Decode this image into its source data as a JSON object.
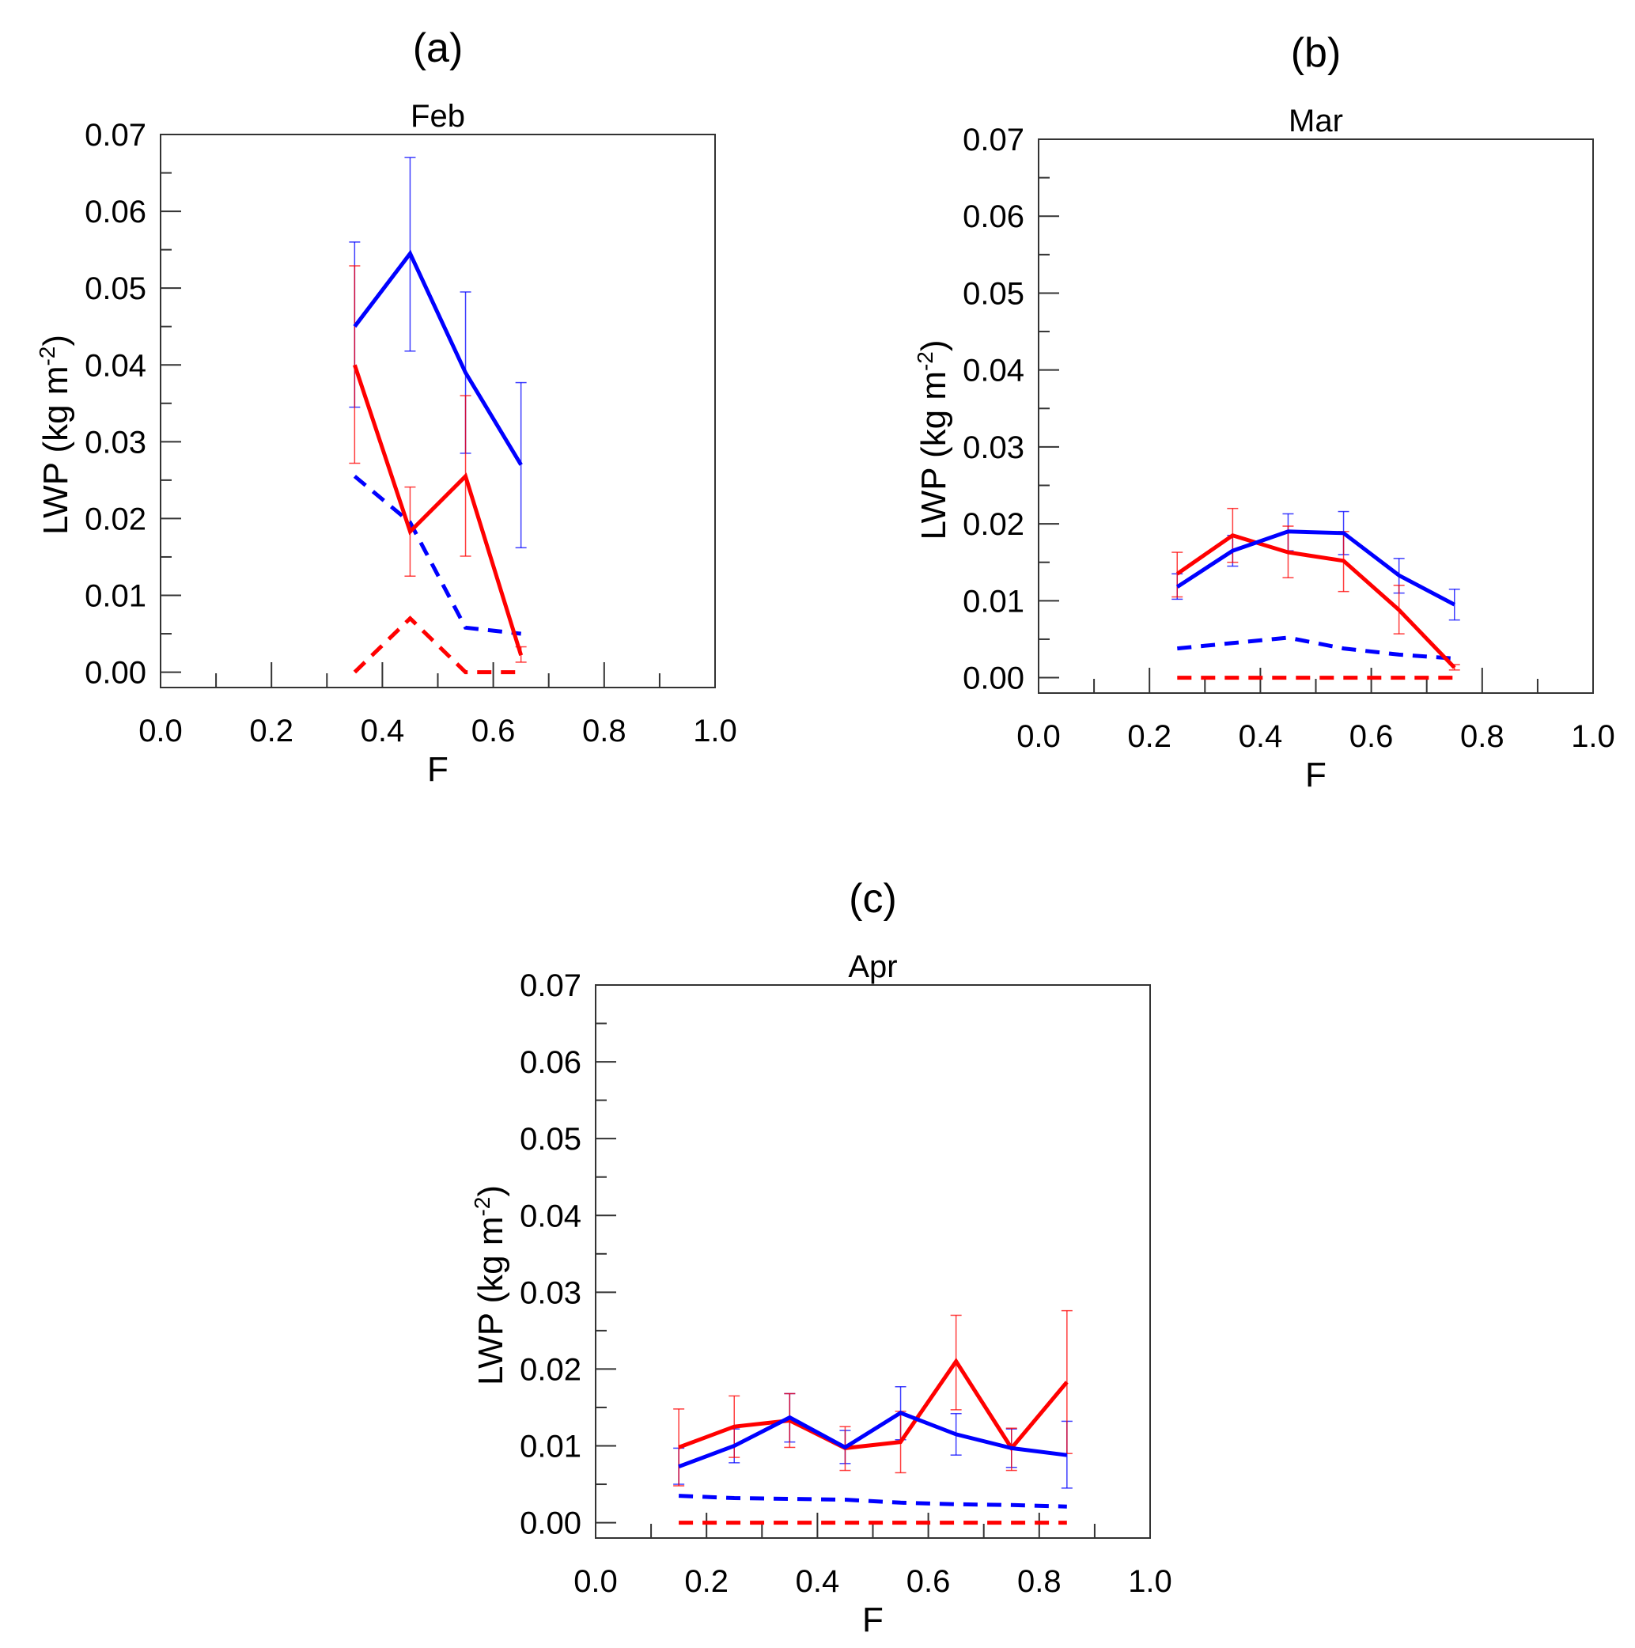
{
  "chart_data": [
    {
      "type": "line",
      "panel_label": "(a)",
      "title": "Feb",
      "xlabel": "F",
      "ylabel": {
        "main": "LWP (kg m",
        "sup": "-2",
        "end": ")"
      },
      "xlim": [
        0,
        1
      ],
      "ylim": [
        -0.002,
        0.07
      ],
      "xticks": [
        "0.0",
        "0.2",
        "0.4",
        "0.6",
        "0.8",
        "1.0"
      ],
      "yticks": [
        "0.00",
        "0.01",
        "0.02",
        "0.03",
        "0.04",
        "0.05",
        "0.06",
        "0.07"
      ],
      "x": [
        0.35,
        0.45,
        0.55,
        0.65
      ],
      "series": [
        {
          "name": "blue-solid",
          "color": "#0000ff",
          "dash": false,
          "values": [
            0.045,
            0.0545,
            0.039,
            0.027
          ],
          "err": [
            [
              0.0345,
              0.056
            ],
            [
              0.0418,
              0.067
            ],
            [
              0.0285,
              0.0495
            ],
            [
              0.0162,
              0.0377
            ]
          ]
        },
        {
          "name": "red-solid",
          "color": "#ff0000",
          "dash": false,
          "values": [
            0.04,
            0.0183,
            0.0255,
            0.0022
          ],
          "err": [
            [
              0.0272,
              0.0529
            ],
            [
              0.0125,
              0.0241
            ],
            [
              0.0151,
              0.036
            ],
            [
              0.0013,
              0.0033
            ]
          ]
        },
        {
          "name": "blue-dashed",
          "color": "#0000ff",
          "dash": true,
          "values": [
            0.0255,
            0.0195,
            0.0058,
            0.005
          ]
        },
        {
          "name": "red-dashed",
          "color": "#ff0000",
          "dash": true,
          "values": [
            0,
            0.007,
            0,
            0
          ]
        }
      ]
    },
    {
      "type": "line",
      "panel_label": "(b)",
      "title": "Mar",
      "xlabel": "F",
      "ylabel": {
        "main": "LWP (kg m",
        "sup": "-2",
        "end": ")"
      },
      "xlim": [
        0,
        1
      ],
      "ylim": [
        -0.002,
        0.07
      ],
      "xticks": [
        "0.0",
        "0.2",
        "0.4",
        "0.6",
        "0.8",
        "1.0"
      ],
      "yticks": [
        "0.00",
        "0.01",
        "0.02",
        "0.03",
        "0.04",
        "0.05",
        "0.06",
        "0.07"
      ],
      "x": [
        0.25,
        0.35,
        0.45,
        0.55,
        0.65,
        0.75
      ],
      "series": [
        {
          "name": "blue-solid",
          "color": "#0000ff",
          "dash": false,
          "values": [
            0.0118,
            0.0165,
            0.019,
            0.0188,
            0.0133,
            0.0095
          ],
          "err": [
            [
              0.0102,
              0.0135
            ],
            [
              0.0145,
              0.0185
            ],
            [
              0.0165,
              0.0213
            ],
            [
              0.016,
              0.0216
            ],
            [
              0.011,
              0.0155
            ],
            [
              0.0075,
              0.0115
            ]
          ]
        },
        {
          "name": "red-solid",
          "color": "#ff0000",
          "dash": false,
          "values": [
            0.0135,
            0.0185,
            0.0163,
            0.0152,
            0.0088,
            0.0013
          ],
          "err": [
            [
              0.0105,
              0.0163
            ],
            [
              0.015,
              0.022
            ],
            [
              0.013,
              0.0197
            ],
            [
              0.0112,
              0.019
            ],
            [
              0.0057,
              0.012
            ],
            [
              0.001,
              0.0017
            ]
          ]
        },
        {
          "name": "blue-dashed",
          "color": "#0000ff",
          "dash": true,
          "values": [
            0.0038,
            0.0045,
            0.0052,
            0.0038,
            0.003,
            0.0025
          ]
        },
        {
          "name": "red-dashed",
          "color": "#ff0000",
          "dash": true,
          "values": [
            0,
            0,
            0,
            0,
            0,
            0
          ]
        }
      ]
    },
    {
      "type": "line",
      "panel_label": "(c)",
      "title": "Apr",
      "xlabel": "F",
      "ylabel": {
        "main": "LWP (kg m",
        "sup": "-2",
        "end": ")"
      },
      "xlim": [
        0,
        1
      ],
      "ylim": [
        -0.002,
        0.07
      ],
      "xticks": [
        "0.0",
        "0.2",
        "0.4",
        "0.6",
        "0.8",
        "1.0"
      ],
      "yticks": [
        "0.00",
        "0.01",
        "0.02",
        "0.03",
        "0.04",
        "0.05",
        "0.06",
        "0.07"
      ],
      "x": [
        0.15,
        0.25,
        0.35,
        0.45,
        0.55,
        0.65,
        0.75,
        0.85
      ],
      "series": [
        {
          "name": "blue-solid",
          "color": "#0000ff",
          "dash": false,
          "values": [
            0.0073,
            0.01,
            0.0137,
            0.0098,
            0.0143,
            0.0115,
            0.0097,
            0.0088
          ],
          "err": [
            [
              0.005,
              0.0097
            ],
            [
              0.0078,
              0.0122
            ],
            [
              0.0105,
              0.0168
            ],
            [
              0.0077,
              0.012
            ],
            [
              0.0108,
              0.0177
            ],
            [
              0.0088,
              0.0142
            ],
            [
              0.0072,
              0.0122
            ],
            [
              0.0045,
              0.0132
            ]
          ]
        },
        {
          "name": "red-solid",
          "color": "#ff0000",
          "dash": false,
          "values": [
            0.0098,
            0.0125,
            0.0133,
            0.0097,
            0.0105,
            0.021,
            0.0097,
            0.0183
          ],
          "err": [
            [
              0.0048,
              0.0148
            ],
            [
              0.0085,
              0.0165
            ],
            [
              0.0098,
              0.0168
            ],
            [
              0.0068,
              0.0125
            ],
            [
              0.0065,
              0.0145
            ],
            [
              0.0147,
              0.027
            ],
            [
              0.0068,
              0.0123
            ],
            [
              0.009,
              0.0276
            ]
          ]
        },
        {
          "name": "blue-dashed",
          "color": "#0000ff",
          "dash": true,
          "values": [
            0.0035,
            0.0032,
            0.0031,
            0.003,
            0.0026,
            0.0024,
            0.0023,
            0.0021
          ]
        },
        {
          "name": "red-dashed",
          "color": "#ff0000",
          "dash": true,
          "values": [
            0,
            0,
            0,
            0,
            0,
            0,
            0,
            0
          ]
        }
      ]
    }
  ]
}
